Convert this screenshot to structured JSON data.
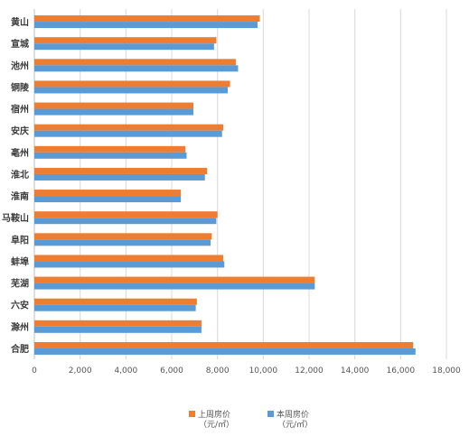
{
  "chart_data": {
    "type": "bar",
    "orientation": "horizontal",
    "categories": [
      "黄山",
      "宣城",
      "池州",
      "铜陵",
      "宿州",
      "安庆",
      "亳州",
      "淮北",
      "淮南",
      "马鞍山",
      "阜阳",
      "蚌埠",
      "芜湖",
      "六安",
      "滁州",
      "合肥"
    ],
    "series": [
      {
        "name": "上周房价",
        "unit": "（元/㎡）",
        "color": "#ED7D31",
        "values": [
          9850,
          7950,
          8800,
          8550,
          6950,
          8250,
          6600,
          7550,
          6400,
          8000,
          7750,
          8250,
          12250,
          7100,
          7300,
          16550
        ]
      },
      {
        "name": "本周房价",
        "unit": "（元/㎡）",
        "color": "#5B9BD5",
        "values": [
          9750,
          7850,
          8900,
          8450,
          6950,
          8200,
          6650,
          7450,
          6400,
          7950,
          7700,
          8300,
          12250,
          7050,
          7300,
          16650
        ]
      }
    ],
    "xlim": [
      0,
      18000
    ],
    "xticks": [
      0,
      2000,
      4000,
      6000,
      8000,
      10000,
      12000,
      14000,
      16000,
      18000
    ],
    "xtick_labels": [
      "0",
      "2,000",
      "4,000",
      "6,000",
      "8,000",
      "10,000",
      "12,000",
      "14,000",
      "16,000",
      "18,000"
    ],
    "grid": true,
    "legend_position": "bottom"
  }
}
